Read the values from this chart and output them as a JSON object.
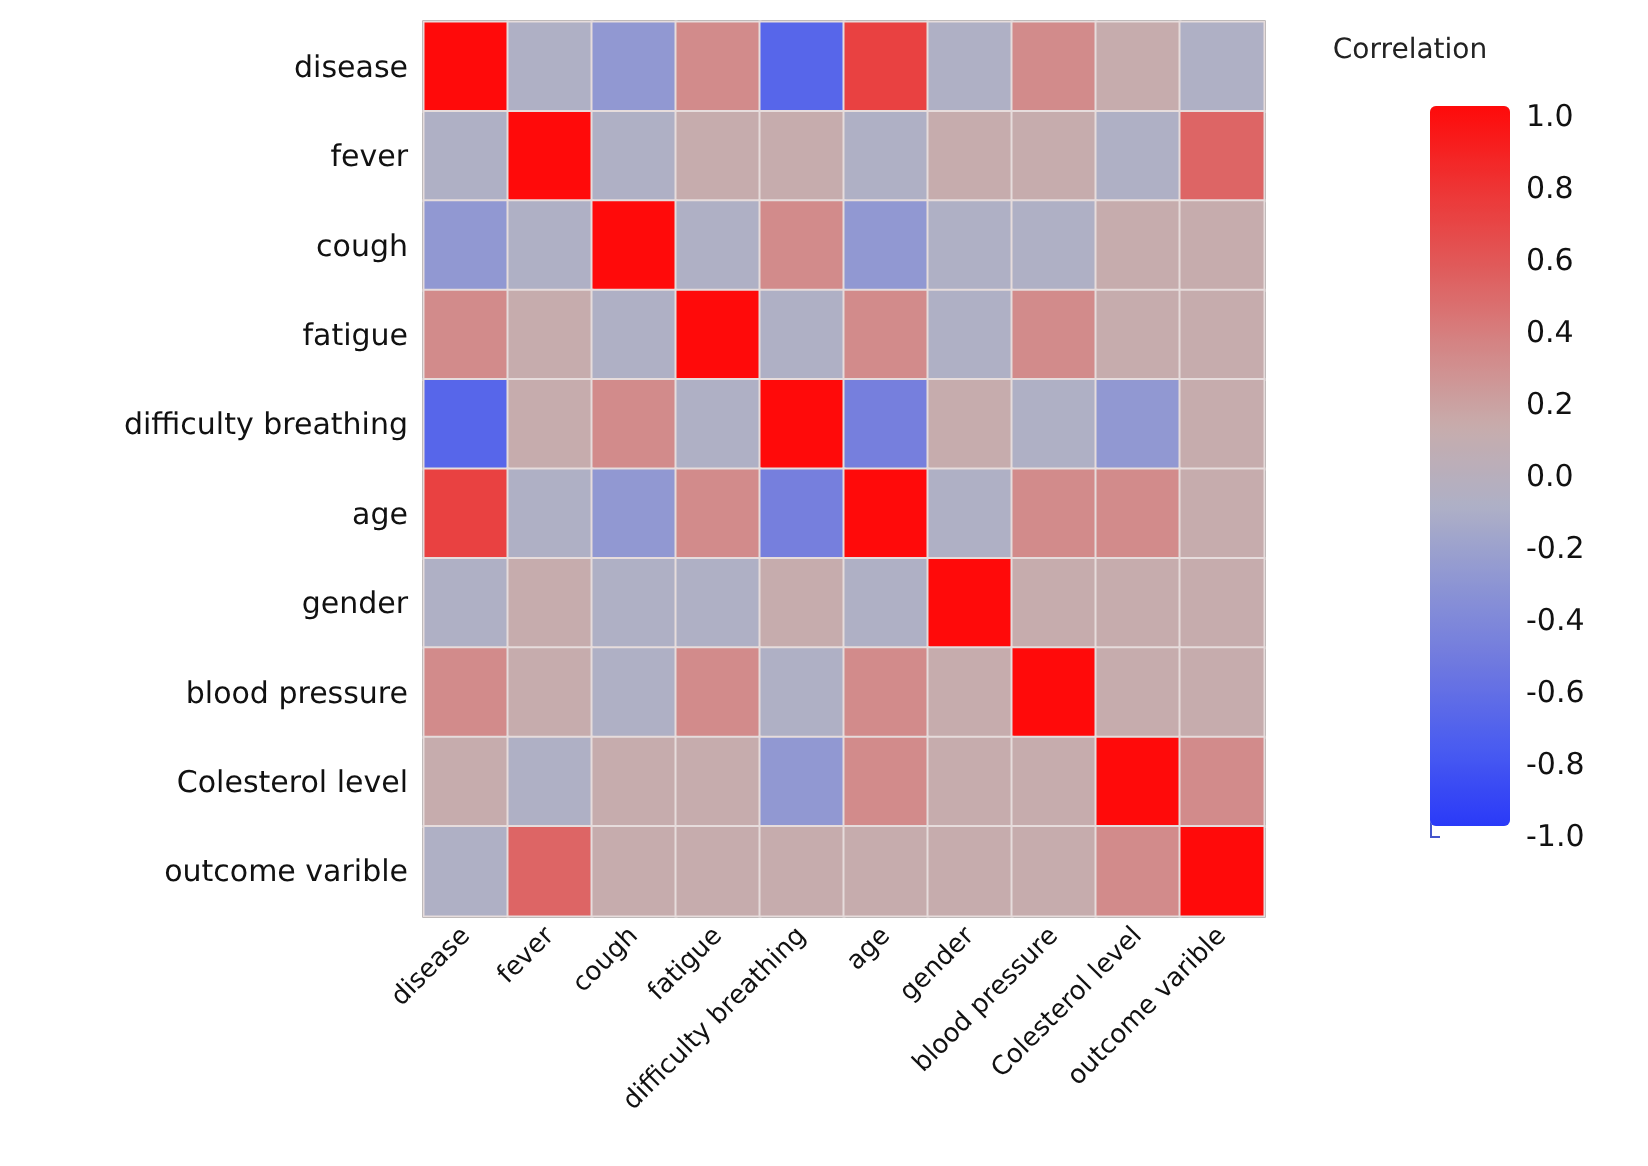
{
  "chart_data": {
    "type": "heatmap",
    "clabel": "Correlation",
    "categories": [
      "disease",
      "fever",
      "cough",
      "fatigue",
      "difficulty breathing",
      "age",
      "gender",
      "blood pressure",
      "Colesterol level",
      "outcome varible"
    ],
    "y_categories": [
      "disease",
      "fever",
      "cough",
      "fatigue",
      "difficulty breathing",
      "age",
      "gender",
      "blood pressure",
      "Colesterol level",
      "outcome varible"
    ],
    "cells": [
      [
        1,
        -0.1,
        -0.3,
        0.3,
        -0.7,
        0.7,
        -0.1,
        0.3,
        0.1,
        -0.1
      ],
      [
        -0.1,
        1,
        -0.1,
        0.1,
        0.1,
        -0.1,
        0.1,
        0.1,
        -0.1,
        0.5
      ],
      [
        -0.3,
        -0.1,
        1,
        -0.1,
        0.3,
        -0.3,
        -0.1,
        -0.1,
        0.1,
        0.1
      ],
      [
        0.3,
        0.1,
        -0.1,
        1,
        -0.1,
        0.3,
        -0.1,
        0.3,
        0.1,
        0.1
      ],
      [
        -0.7,
        0.1,
        0.3,
        -0.1,
        1,
        -0.5,
        0.1,
        -0.1,
        -0.3,
        0.1
      ],
      [
        0.7,
        -0.1,
        -0.3,
        0.3,
        -0.5,
        1,
        -0.1,
        0.3,
        0.3,
        0.1
      ],
      [
        -0.1,
        0.1,
        -0.1,
        -0.1,
        0.1,
        -0.1,
        1,
        0.1,
        0.1,
        0.1
      ],
      [
        0.3,
        0.1,
        -0.1,
        0.3,
        -0.1,
        0.3,
        0.1,
        1,
        0.1,
        0.1
      ],
      [
        0.1,
        -0.1,
        0.1,
        0.1,
        -0.3,
        0.3,
        0.1,
        0.1,
        1,
        0.3
      ],
      [
        -0.1,
        0.5,
        0.1,
        0.1,
        0.1,
        0.1,
        0.1,
        0.1,
        0.3,
        1
      ]
    ],
    "clim": [
      -1,
      1
    ],
    "cticks": [
      {
        "value": -1,
        "label": "-1.0"
      },
      {
        "value": -0.8,
        "label": "-0.8"
      },
      {
        "value": -0.6,
        "label": "-0.6"
      },
      {
        "value": -0.4,
        "label": "-0.4"
      },
      {
        "value": -0.2,
        "label": "-0.2"
      },
      {
        "value": 0,
        "label": "0.0"
      },
      {
        "value": 0.2,
        "label": "0.2"
      },
      {
        "value": 0.4,
        "label": "0.4"
      },
      {
        "value": 0.6,
        "label": "0.6"
      },
      {
        "value": 0.8,
        "label": "0.8"
      },
      {
        "value": 1,
        "label": "1.0"
      }
    ]
  }
}
